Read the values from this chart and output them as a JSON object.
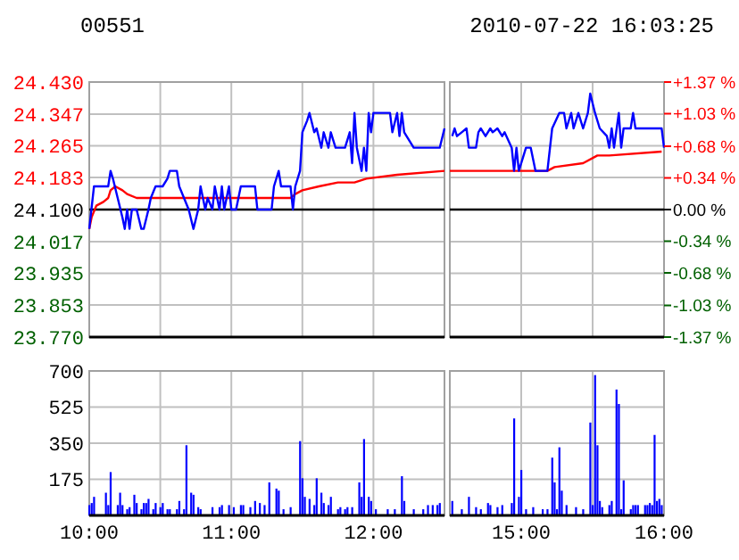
{
  "chart_data": [
    {
      "type": "line",
      "title": "00551",
      "tick_labels": "y",
      "grid": true,
      "xlim": [
        "2010-07-22T10:00",
        "2010-07-22T12:30"
      ],
      "xticks": [
        {
          "value": "2010-07-22T10:00",
          "label": null
        },
        {
          "value": "2010-07-22T10:30",
          "label": null
        },
        {
          "value": "2010-07-22T11:00",
          "label": null
        },
        {
          "value": "2010-07-22T11:30",
          "label": null
        },
        {
          "value": "2010-07-22T12:00",
          "label": null
        },
        {
          "value": "2010-07-22T12:30",
          "label": null
        }
      ],
      "ylim": [
        23.77,
        24.43
      ],
      "yticks": [
        {
          "value": 23.77,
          "label": "23.770"
        },
        {
          "value": 23.853,
          "label": "23.853"
        },
        {
          "value": 23.935,
          "label": "23.935"
        },
        {
          "value": 24.017,
          "label": "24.017"
        },
        {
          "value": 24.1,
          "label": "24.100"
        },
        {
          "value": 24.183,
          "label": "24.183"
        },
        {
          "value": 24.265,
          "label": "24.265"
        },
        {
          "value": 24.347,
          "label": "24.347"
        },
        {
          "value": 24.43,
          "label": "24.430"
        }
      ],
      "ref_lines": [
        {
          "axis": "y",
          "value": 24.1,
          "color": "#000000"
        }
      ],
      "series": [
        {
          "color": "#ff0000",
          "x": [
            "2010-07-22T10:00",
            "2010-07-22T10:01",
            "2010-07-22T10:03",
            "2010-07-22T10:06",
            "2010-07-22T10:08",
            "2010-07-22T10:09",
            "2010-07-22T10:11",
            "2010-07-22T10:14",
            "2010-07-22T10:16",
            "2010-07-22T10:20",
            "2010-07-22T10:24",
            "2010-07-22T10:37",
            "2010-07-22T10:42",
            "2010-07-22T11:02",
            "2010-07-22T11:25",
            "2010-07-22T11:27",
            "2010-07-22T11:30",
            "2010-07-22T11:37",
            "2010-07-22T11:45",
            "2010-07-22T11:52",
            "2010-07-22T11:57",
            "2010-07-22T12:10",
            "2010-07-22T12:30"
          ],
          "values": [
            24.05,
            24.08,
            24.11,
            24.12,
            24.13,
            24.15,
            24.16,
            24.15,
            24.14,
            24.13,
            24.13,
            24.13,
            24.13,
            24.13,
            24.13,
            24.14,
            24.15,
            24.16,
            24.17,
            24.17,
            24.18,
            24.19,
            24.2
          ]
        },
        {
          "color": "#0000ff",
          "x": [
            "2010-07-22T10:00",
            "2010-07-22T10:02",
            "2010-07-22T10:08",
            "2010-07-22T10:09",
            "2010-07-22T10:10",
            "2010-07-22T10:12",
            "2010-07-22T10:14",
            "2010-07-22T10:15",
            "2010-07-22T10:16",
            "2010-07-22T10:17",
            "2010-07-22T10:18",
            "2010-07-22T10:20",
            "2010-07-22T10:22",
            "2010-07-22T10:23",
            "2010-07-22T10:25",
            "2010-07-22T10:26",
            "2010-07-22T10:28",
            "2010-07-22T10:31",
            "2010-07-22T10:33",
            "2010-07-22T10:34",
            "2010-07-22T10:37",
            "2010-07-22T10:38",
            "2010-07-22T10:42",
            "2010-07-22T10:44",
            "2010-07-22T10:46",
            "2010-07-22T10:47",
            "2010-07-22T10:49",
            "2010-07-22T10:50",
            "2010-07-22T10:52",
            "2010-07-22T10:53",
            "2010-07-22T10:55",
            "2010-07-22T10:56",
            "2010-07-22T10:57",
            "2010-07-22T10:59",
            "2010-07-22T11:00",
            "2010-07-22T11:02",
            "2010-07-22T11:04",
            "2010-07-22T11:10",
            "2010-07-22T11:11",
            "2010-07-22T11:17",
            "2010-07-22T11:18",
            "2010-07-22T11:20",
            "2010-07-22T11:21",
            "2010-07-22T11:25",
            "2010-07-22T11:26",
            "2010-07-22T11:27",
            "2010-07-22T11:29",
            "2010-07-22T11:30",
            "2010-07-22T11:32",
            "2010-07-22T11:33",
            "2010-07-22T11:35",
            "2010-07-22T11:36",
            "2010-07-22T11:38",
            "2010-07-22T11:39",
            "2010-07-22T11:41",
            "2010-07-22T11:42",
            "2010-07-22T11:44",
            "2010-07-22T11:48",
            "2010-07-22T11:50",
            "2010-07-22T11:51",
            "2010-07-22T11:52",
            "2010-07-22T11:53",
            "2010-07-22T11:55",
            "2010-07-22T11:56",
            "2010-07-22T11:57",
            "2010-07-22T11:58",
            "2010-07-22T11:59",
            "2010-07-22T12:00",
            "2010-07-22T12:02",
            "2010-07-22T12:07",
            "2010-07-22T12:08",
            "2010-07-22T12:10",
            "2010-07-22T12:11",
            "2010-07-22T12:12",
            "2010-07-22T12:13",
            "2010-07-22T12:17",
            "2010-07-22T12:28",
            "2010-07-22T12:30"
          ],
          "values": [
            24.05,
            24.16,
            24.16,
            24.2,
            24.18,
            24.13,
            24.08,
            24.05,
            24.1,
            24.05,
            24.1,
            24.1,
            24.05,
            24.05,
            24.1,
            24.13,
            24.16,
            24.16,
            24.18,
            24.2,
            24.2,
            24.16,
            24.1,
            24.05,
            24.1,
            24.16,
            24.1,
            24.13,
            24.1,
            24.16,
            24.1,
            24.16,
            24.1,
            24.16,
            24.1,
            24.1,
            24.16,
            24.16,
            24.1,
            24.1,
            24.16,
            24.2,
            24.16,
            24.16,
            24.1,
            24.16,
            24.2,
            24.3,
            24.33,
            24.35,
            24.3,
            24.31,
            24.26,
            24.3,
            24.26,
            24.3,
            24.26,
            24.26,
            24.3,
            24.22,
            24.35,
            24.26,
            24.2,
            24.26,
            24.2,
            24.35,
            24.3,
            24.35,
            24.35,
            24.35,
            24.3,
            24.35,
            24.29,
            24.35,
            24.3,
            24.26,
            24.26,
            24.31
          ]
        }
      ]
    },
    {
      "type": "line",
      "title": "2010-07-22 16:03:25",
      "tick_labels": false,
      "grid": true,
      "xlim": [
        "2010-07-22T14:30",
        "2010-07-22T16:00"
      ],
      "xticks": [
        {
          "value": "2010-07-22T14:30",
          "label": null
        },
        {
          "value": "2010-07-22T15:00",
          "label": null
        },
        {
          "value": "2010-07-22T15:30",
          "label": null
        },
        {
          "value": "2010-07-22T16:00",
          "label": null
        }
      ],
      "ylim": [
        23.77,
        24.43
      ],
      "yticks": [
        {
          "value": 23.77,
          "label": null
        },
        {
          "value": 23.853,
          "label": null
        },
        {
          "value": 23.935,
          "label": null
        },
        {
          "value": 24.017,
          "label": null
        },
        {
          "value": 24.1,
          "label": null
        },
        {
          "value": 24.183,
          "label": null
        },
        {
          "value": 24.265,
          "label": null
        },
        {
          "value": 24.347,
          "label": null
        },
        {
          "value": 24.43,
          "label": null
        }
      ],
      "y2lim": [
        -1.37,
        1.37
      ],
      "y2ticks": [
        {
          "value": -1.37,
          "label": "-1.37 %"
        },
        {
          "value": -1.03,
          "label": "-1.03 %"
        },
        {
          "value": -0.68,
          "label": "-0.68 %"
        },
        {
          "value": -0.34,
          "label": "-0.34 %"
        },
        {
          "value": 0,
          "label": "0.00 %"
        },
        {
          "value": 0.34,
          "label": "+0.34 %"
        },
        {
          "value": 0.68,
          "label": "+0.68 %"
        },
        {
          "value": 1.03,
          "label": "+1.03 %"
        },
        {
          "value": 1.37,
          "label": "+1.37 %"
        }
      ],
      "ref_lines": [
        {
          "axis": "y",
          "value": 24.1,
          "color": "#000000"
        }
      ],
      "series": [
        {
          "color": "#ff0000",
          "x": [
            "2010-07-22T14:30",
            "2010-07-22T14:45",
            "2010-07-22T15:11",
            "2010-07-22T15:14",
            "2010-07-22T15:26",
            "2010-07-22T15:32",
            "2010-07-22T15:37",
            "2010-07-22T15:59"
          ],
          "values": [
            24.2,
            24.2,
            24.2,
            24.21,
            24.22,
            24.24,
            24.24,
            24.25
          ]
        },
        {
          "color": "#0000ff",
          "x": [
            "2010-07-22T14:31",
            "2010-07-22T14:32",
            "2010-07-22T14:33",
            "2010-07-22T14:35",
            "2010-07-22T14:37",
            "2010-07-22T14:38",
            "2010-07-22T14:41",
            "2010-07-22T14:42",
            "2010-07-22T14:43",
            "2010-07-22T14:45",
            "2010-07-22T14:47",
            "2010-07-22T14:48",
            "2010-07-22T14:50",
            "2010-07-22T14:52",
            "2010-07-22T14:53",
            "2010-07-22T14:56",
            "2010-07-22T14:57",
            "2010-07-22T14:58",
            "2010-07-22T14:59",
            "2010-07-22T15:02",
            "2010-07-22T15:04",
            "2010-07-22T15:06",
            "2010-07-22T15:11",
            "2010-07-22T15:13",
            "2010-07-22T15:16",
            "2010-07-22T15:18",
            "2010-07-22T15:19",
            "2010-07-22T15:21",
            "2010-07-22T15:22",
            "2010-07-22T15:24",
            "2010-07-22T15:26",
            "2010-07-22T15:28",
            "2010-07-22T15:29",
            "2010-07-22T15:31",
            "2010-07-22T15:33",
            "2010-07-22T15:36",
            "2010-07-22T15:37",
            "2010-07-22T15:38",
            "2010-07-22T15:39",
            "2010-07-22T15:41",
            "2010-07-22T15:42",
            "2010-07-22T15:43",
            "2010-07-22T15:46",
            "2010-07-22T15:47",
            "2010-07-22T15:48",
            "2010-07-22T15:59",
            "2010-07-22T16:00"
          ],
          "values": [
            24.29,
            24.31,
            24.29,
            24.3,
            24.31,
            24.26,
            24.26,
            24.3,
            24.31,
            24.29,
            24.31,
            24.3,
            24.31,
            24.29,
            24.3,
            24.26,
            24.2,
            24.26,
            24.2,
            24.26,
            24.26,
            24.2,
            24.2,
            24.31,
            24.35,
            24.35,
            24.31,
            24.35,
            24.31,
            24.35,
            24.31,
            24.35,
            24.4,
            24.35,
            24.31,
            24.29,
            24.26,
            24.31,
            24.26,
            24.35,
            24.26,
            24.31,
            24.31,
            24.35,
            24.31,
            24.31,
            24.26
          ]
        }
      ]
    },
    {
      "type": "bar",
      "grid": true,
      "xlim": [
        "2010-07-22T10:00",
        "2010-07-22T12:30"
      ],
      "xticks": [
        {
          "value": "2010-07-22T10:00",
          "label": "10:00"
        },
        {
          "value": "2010-07-22T10:30",
          "label": null
        },
        {
          "value": "2010-07-22T11:00",
          "label": "11:00"
        },
        {
          "value": "2010-07-22T11:30",
          "label": null
        },
        {
          "value": "2010-07-22T12:00",
          "label": "12:00"
        },
        {
          "value": "2010-07-22T12:30",
          "label": null
        }
      ],
      "ylim": [
        0,
        700
      ],
      "yticks": [
        175,
        350,
        525,
        700
      ],
      "series": [
        {
          "color": "#0000ff",
          "x": [
            "2010-07-22T10:00",
            "2010-07-22T10:01",
            "2010-07-22T10:02",
            "2010-07-22T10:07",
            "2010-07-22T10:08",
            "2010-07-22T10:09",
            "2010-07-22T10:12",
            "2010-07-22T10:13",
            "2010-07-22T10:14",
            "2010-07-22T10:16",
            "2010-07-22T10:17",
            "2010-07-22T10:19",
            "2010-07-22T10:20",
            "2010-07-22T10:22",
            "2010-07-22T10:23",
            "2010-07-22T10:24",
            "2010-07-22T10:25",
            "2010-07-22T10:27",
            "2010-07-22T10:28",
            "2010-07-22T10:30",
            "2010-07-22T10:31",
            "2010-07-22T10:33",
            "2010-07-22T10:34",
            "2010-07-22T10:37",
            "2010-07-22T10:38",
            "2010-07-22T10:40",
            "2010-07-22T10:41",
            "2010-07-22T10:43",
            "2010-07-22T10:44",
            "2010-07-22T10:46",
            "2010-07-22T10:47",
            "2010-07-22T10:52",
            "2010-07-22T10:55",
            "2010-07-22T10:56",
            "2010-07-22T10:59",
            "2010-07-22T11:01",
            "2010-07-22T11:04",
            "2010-07-22T11:05",
            "2010-07-22T11:08",
            "2010-07-22T11:10",
            "2010-07-22T11:12",
            "2010-07-22T11:14",
            "2010-07-22T11:16",
            "2010-07-22T11:19",
            "2010-07-22T11:20",
            "2010-07-22T11:22",
            "2010-07-22T11:25",
            "2010-07-22T11:29",
            "2010-07-22T11:30",
            "2010-07-22T11:31",
            "2010-07-22T11:33",
            "2010-07-22T11:35",
            "2010-07-22T11:36",
            "2010-07-22T11:38",
            "2010-07-22T11:39",
            "2010-07-22T11:41",
            "2010-07-22T11:42",
            "2010-07-22T11:45",
            "2010-07-22T11:46",
            "2010-07-22T11:48",
            "2010-07-22T11:49",
            "2010-07-22T11:51",
            "2010-07-22T11:54",
            "2010-07-22T11:55",
            "2010-07-22T11:56",
            "2010-07-22T11:58",
            "2010-07-22T11:59",
            "2010-07-22T12:01",
            "2010-07-22T12:06",
            "2010-07-22T12:09",
            "2010-07-22T12:12",
            "2010-07-22T12:13",
            "2010-07-22T12:17",
            "2010-07-22T12:21",
            "2010-07-22T12:23",
            "2010-07-22T12:25",
            "2010-07-22T12:27",
            "2010-07-22T12:28"
          ],
          "values": [
            50,
            60,
            90,
            110,
            50,
            210,
            50,
            110,
            50,
            30,
            40,
            100,
            60,
            30,
            60,
            60,
            80,
            30,
            60,
            40,
            60,
            30,
            30,
            30,
            70,
            30,
            340,
            110,
            100,
            40,
            30,
            40,
            40,
            50,
            50,
            40,
            50,
            50,
            40,
            70,
            60,
            50,
            160,
            130,
            120,
            30,
            40,
            360,
            180,
            90,
            80,
            50,
            180,
            110,
            60,
            50,
            90,
            30,
            40,
            30,
            40,
            40,
            160,
            90,
            370,
            90,
            70,
            30,
            30,
            30,
            190,
            70,
            30,
            30,
            50,
            50,
            50,
            60
          ]
        }
      ]
    },
    {
      "type": "bar",
      "tick_labels": "x",
      "grid": true,
      "xlim": [
        "2010-07-22T14:30",
        "2010-07-22T16:00"
      ],
      "xticks": [
        {
          "value": "2010-07-22T14:30",
          "label": null
        },
        {
          "value": "2010-07-22T15:00",
          "label": "15:00"
        },
        {
          "value": "2010-07-22T15:30",
          "label": null
        },
        {
          "value": "2010-07-22T16:00",
          "label": "16:00"
        }
      ],
      "ylim": [
        0,
        700
      ],
      "yticks": [
        175,
        350,
        525,
        700
      ],
      "series": [
        {
          "color": "#0000ff",
          "x": [
            "2010-07-22T14:31",
            "2010-07-22T14:35",
            "2010-07-22T14:38",
            "2010-07-22T14:41",
            "2010-07-22T14:43",
            "2010-07-22T14:46",
            "2010-07-22T14:47",
            "2010-07-22T14:50",
            "2010-07-22T14:52",
            "2010-07-22T14:56",
            "2010-07-22T14:57",
            "2010-07-22T14:59",
            "2010-07-22T15:00",
            "2010-07-22T15:02",
            "2010-07-22T15:05",
            "2010-07-22T15:09",
            "2010-07-22T15:11",
            "2010-07-22T15:13",
            "2010-07-22T15:14",
            "2010-07-22T15:15",
            "2010-07-22T15:16",
            "2010-07-22T15:17",
            "2010-07-22T15:19",
            "2010-07-22T15:23",
            "2010-07-22T15:26",
            "2010-07-22T15:29",
            "2010-07-22T15:30",
            "2010-07-22T15:31",
            "2010-07-22T15:32",
            "2010-07-22T15:33",
            "2010-07-22T15:34",
            "2010-07-22T15:37",
            "2010-07-22T15:38",
            "2010-07-22T15:40",
            "2010-07-22T15:41",
            "2010-07-22T15:42",
            "2010-07-22T15:43",
            "2010-07-22T15:46",
            "2010-07-22T15:47",
            "2010-07-22T15:48",
            "2010-07-22T15:49",
            "2010-07-22T15:52",
            "2010-07-22T15:53",
            "2010-07-22T15:54",
            "2010-07-22T15:55",
            "2010-07-22T15:56",
            "2010-07-22T15:57",
            "2010-07-22T15:58",
            "2010-07-22T15:59"
          ],
          "values": [
            70,
            30,
            90,
            40,
            30,
            60,
            50,
            40,
            50,
            60,
            470,
            90,
            220,
            30,
            40,
            30,
            30,
            280,
            160,
            30,
            330,
            120,
            50,
            40,
            30,
            450,
            50,
            680,
            340,
            70,
            40,
            50,
            70,
            610,
            540,
            30,
            170,
            30,
            50,
            50,
            50,
            50,
            50,
            60,
            50,
            390,
            70,
            80,
            50
          ]
        }
      ]
    }
  ]
}
